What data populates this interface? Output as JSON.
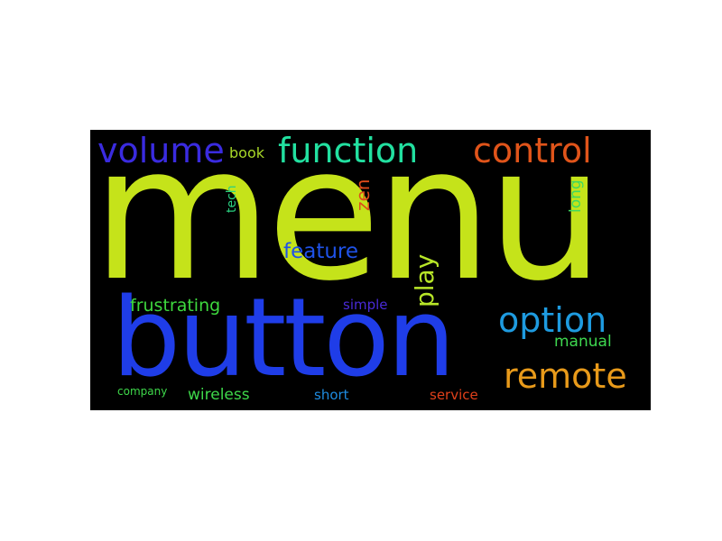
{
  "words": {
    "menu": {
      "text": "menu",
      "color": "#c5e31a"
    },
    "button": {
      "text": "button",
      "color": "#1f3de8"
    },
    "volume": {
      "text": "volume",
      "color": "#3a2be0"
    },
    "function": {
      "text": "function",
      "color": "#22e0a0"
    },
    "control": {
      "text": "control",
      "color": "#e0541a"
    },
    "option": {
      "text": "option",
      "color": "#1e9be0"
    },
    "remote": {
      "text": "remote",
      "color": "#e89a1a"
    },
    "feature": {
      "text": "feature",
      "color": "#1f52e8"
    },
    "play": {
      "text": "play",
      "color": "#b8e628"
    },
    "frustrating": {
      "text": "frustrating",
      "color": "#3ed83e"
    },
    "zen": {
      "text": "zen",
      "color": "#e04b1a"
    },
    "book": {
      "text": "book",
      "color": "#a8d828"
    },
    "tech": {
      "text": "tech",
      "color": "#2ad080"
    },
    "long": {
      "text": "long",
      "color": "#3ed860"
    },
    "simple": {
      "text": "simple",
      "color": "#4a2ad8"
    },
    "manual": {
      "text": "manual",
      "color": "#3ed850"
    },
    "wireless": {
      "text": "wireless",
      "color": "#3ed84a"
    },
    "short": {
      "text": "short",
      "color": "#1e8be0"
    },
    "service": {
      "text": "service",
      "color": "#e0401a"
    },
    "company": {
      "text": "company",
      "color": "#3ed84a"
    }
  }
}
